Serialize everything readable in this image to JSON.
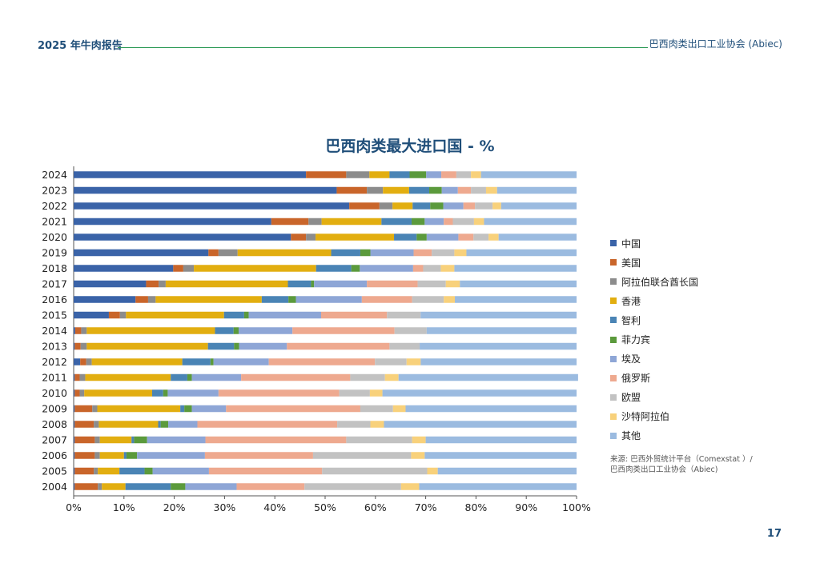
{
  "header": {
    "left": "2025 年牛肉报告",
    "right": "巴西肉类出口工业协会 (Abiec)"
  },
  "page_number": "17",
  "source": {
    "line1": "来源: 巴西外贸统计平台（Comexstat ）/",
    "line2": "巴西肉类出口工业协会（Abiec)"
  },
  "colors": [
    "#3a63a8",
    "#c9652a",
    "#8c8c8c",
    "#e2ae10",
    "#4a84b5",
    "#5b9a3c",
    "#8ea6d6",
    "#eea98f",
    "#c2c2c2",
    "#f8d17b",
    "#9bbbe0"
  ],
  "chart_data": {
    "type": "bar",
    "orientation": "horizontal",
    "stacked": true,
    "title": "巴西肉类最大进口国 - %",
    "xlim": [
      0,
      100
    ],
    "x_tick_labels": [
      "0%",
      "10%",
      "20%",
      "30%",
      "40%",
      "50%",
      "60%",
      "70%",
      "80%",
      "90%",
      "100%"
    ],
    "categories": [
      "2024",
      "2023",
      "2022",
      "2021",
      "2020",
      "2019",
      "2018",
      "2017",
      "2016",
      "2015",
      "2014",
      "2013",
      "2012",
      "2011",
      "2010",
      "2009",
      "2008",
      "2007",
      "2006",
      "2005",
      "2004"
    ],
    "legend_position": "right",
    "series": [
      {
        "name": "中国",
        "values": [
          46.2,
          52.3,
          54.8,
          39.3,
          43.2,
          26.8,
          19.8,
          14.4,
          12.3,
          7.0,
          0.3,
          0.2,
          1.3,
          0.2,
          0.2,
          0.2,
          0.2,
          0.2,
          0.2,
          0.2,
          0.2
        ]
      },
      {
        "name": "美国",
        "values": [
          8.0,
          6.0,
          6.0,
          7.4,
          3.0,
          2.0,
          2.0,
          2.5,
          2.5,
          2.2,
          1.2,
          1.2,
          1.2,
          1.0,
          1.0,
          3.5,
          3.8,
          4.0,
          4.0,
          3.8,
          4.6
        ]
      },
      {
        "name": "阿拉伯联合酋长国",
        "values": [
          4.6,
          3.2,
          2.6,
          2.6,
          1.9,
          3.8,
          2.1,
          1.4,
          1.5,
          1.2,
          1.1,
          1.2,
          1.1,
          1.1,
          0.9,
          1.0,
          1.0,
          1.0,
          1.0,
          0.8,
          0.8
        ]
      },
      {
        "name": "香港",
        "values": [
          4.0,
          5.2,
          4.0,
          11.9,
          15.6,
          18.6,
          24.3,
          24.3,
          21.1,
          19.5,
          25.5,
          24.1,
          18.0,
          17.0,
          13.5,
          16.5,
          11.8,
          6.3,
          4.8,
          4.3,
          4.7
        ]
      },
      {
        "name": "智利",
        "values": [
          4.0,
          4.0,
          3.5,
          6.0,
          4.5,
          5.8,
          7.0,
          4.6,
          5.3,
          4.0,
          3.7,
          5.2,
          5.6,
          3.3,
          2.2,
          0.8,
          0.5,
          0.5,
          0.5,
          5.0,
          9.0
        ]
      },
      {
        "name": "菲力宾",
        "values": [
          3.3,
          2.5,
          2.6,
          2.6,
          2.0,
          2.0,
          1.7,
          0.6,
          1.5,
          0.9,
          1.0,
          1.0,
          0.6,
          0.9,
          0.9,
          1.5,
          1.5,
          2.6,
          2.1,
          1.6,
          2.9
        ]
      },
      {
        "name": "埃及",
        "values": [
          3.0,
          3.2,
          4.0,
          3.8,
          6.3,
          8.6,
          10.6,
          10.5,
          13.1,
          14.4,
          10.7,
          9.5,
          11.0,
          9.8,
          10.1,
          6.8,
          5.8,
          11.6,
          13.5,
          11.2,
          10.2
        ]
      },
      {
        "name": "俄罗斯",
        "values": [
          3.0,
          2.6,
          2.3,
          1.8,
          3.0,
          3.6,
          2.0,
          10.1,
          10.0,
          13.1,
          20.3,
          20.4,
          21.1,
          21.7,
          24.0,
          26.7,
          27.8,
          28.0,
          21.5,
          22.5,
          13.5
        ]
      },
      {
        "name": "欧盟",
        "values": [
          2.9,
          3.0,
          3.5,
          4.2,
          3.0,
          4.5,
          3.5,
          5.6,
          6.3,
          6.7,
          6.4,
          6.0,
          6.3,
          6.9,
          6.1,
          6.5,
          6.6,
          13.1,
          19.5,
          20.9,
          19.2
        ]
      },
      {
        "name": "沙特阿拉伯",
        "values": [
          2.0,
          2.2,
          1.7,
          2.0,
          2.0,
          2.4,
          2.7,
          2.8,
          2.2,
          0.0,
          0.0,
          0.0,
          2.8,
          2.7,
          2.5,
          2.5,
          2.7,
          2.7,
          2.7,
          2.1,
          3.6
        ]
      },
      {
        "name": "其他",
        "values": [
          19.0,
          15.8,
          15.0,
          18.4,
          15.5,
          21.9,
          24.3,
          23.2,
          24.2,
          31.0,
          29.8,
          31.2,
          31.0,
          35.7,
          38.6,
          34.0,
          38.3,
          30.0,
          30.2,
          27.6,
          31.3
        ]
      }
    ]
  }
}
